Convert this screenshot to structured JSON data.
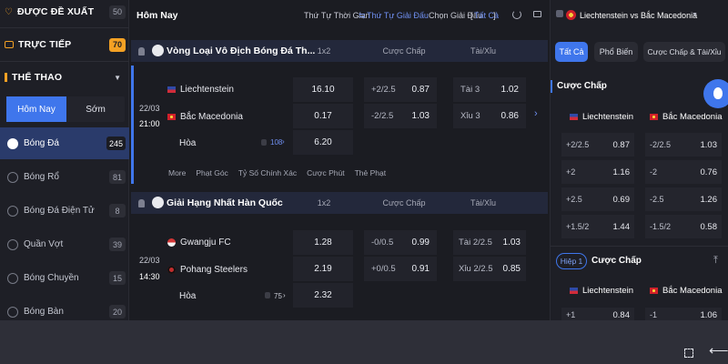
{
  "sidebar": {
    "recommended": {
      "label": "ĐƯỢC ĐỀ XUẤT",
      "count": "50"
    },
    "live": {
      "label": "TRỰC TIẾP",
      "count": "70"
    },
    "sports_header": {
      "label": "THỂ THAO"
    },
    "tabs": [
      {
        "label": "Hôm Nay"
      },
      {
        "label": "Sớm"
      }
    ],
    "sports": [
      {
        "label": "Bóng Đá",
        "count": "245"
      },
      {
        "label": "Bóng Rổ",
        "count": "81"
      },
      {
        "label": "Bóng Đá Điện Tử",
        "count": "8"
      },
      {
        "label": "Quần Vợt",
        "count": "39"
      },
      {
        "label": "Bóng Chuyền",
        "count": "15"
      },
      {
        "label": "Bóng Bàn",
        "count": "20"
      }
    ]
  },
  "main": {
    "title": "Hôm Nay",
    "sort_time": "Thứ Tự Thời Gian",
    "sort_league": "Thứ Tự Giải Đấu",
    "choose_league": "Chọn Giải Đấu",
    "all_link": "Tất Cả",
    "leagues": [
      {
        "name": "Vòng Loại Vô Địch Bóng Đá Th...",
        "col_1x2": "1x2",
        "col_handicap": "Cược Chấp",
        "col_ou": "Tài/Xỉu",
        "date": "22/03",
        "time": "21:00",
        "home": "Liechtenstein",
        "away": "Bắc Macedonia",
        "draw": "Hòa",
        "count": "108",
        "odds_1x2": [
          "16.10",
          "0.17",
          "6.20"
        ],
        "handicap": [
          {
            "line": "+2/2.5",
            "odds": "0.87"
          },
          {
            "line": "-2/2.5",
            "odds": "1.03"
          }
        ],
        "ou": [
          {
            "line": "Tài 3",
            "odds": "1.02"
          },
          {
            "line": "Xỉu 3",
            "odds": "0.86"
          }
        ],
        "more_links": [
          "More",
          "Phạt Góc",
          "Tỷ Số Chính Xác",
          "Cược Phút",
          "Thẻ Phạt"
        ]
      },
      {
        "name": "Giải Hạng Nhất Hàn Quốc",
        "col_1x2": "1x2",
        "col_handicap": "Cược Chấp",
        "col_ou": "Tài/Xỉu",
        "date": "22/03",
        "time": "14:30",
        "home": "Gwangju FC",
        "away": "Pohang Steelers",
        "draw": "Hòa",
        "count": "75",
        "odds_1x2": [
          "1.28",
          "2.19",
          "2.32"
        ],
        "handicap": [
          {
            "line": "-0/0.5",
            "odds": "0.99"
          },
          {
            "line": "+0/0.5",
            "odds": "0.91"
          }
        ],
        "ou": [
          {
            "line": "Tài 2/2.5",
            "odds": "1.03"
          },
          {
            "line": "Xỉu 2/2.5",
            "odds": "0.85"
          }
        ]
      }
    ]
  },
  "right": {
    "match_title": "Liechtenstein vs Bắc Macedonia",
    "tabs": [
      {
        "label": "Tất Cả"
      },
      {
        "label": "Phổ Biến"
      },
      {
        "label": "Cược Chấp & Tài/Xỉu"
      }
    ],
    "section1": {
      "title": "Cược Chấp",
      "home": "Liechtenstein",
      "away": "Bắc Macedonia",
      "rows": [
        {
          "hline": "+2/2.5",
          "hodds": "0.87",
          "aline": "-2/2.5",
          "aodds": "1.03"
        },
        {
          "hline": "+2",
          "hodds": "1.16",
          "aline": "-2",
          "aodds": "0.76"
        },
        {
          "hline": "+2.5",
          "hodds": "0.69",
          "aline": "-2.5",
          "aodds": "1.26"
        },
        {
          "hline": "+1.5/2",
          "hodds": "1.44",
          "aline": "-1.5/2",
          "aodds": "0.58"
        }
      ]
    },
    "section2": {
      "badge": "Hiệp 1",
      "title": "Cược Chấp",
      "home": "Liechtenstein",
      "away": "Bắc Macedonia",
      "rows": [
        {
          "hline": "+1",
          "hodds": "0.84",
          "aline": "-1",
          "aodds": "1.06"
        }
      ]
    }
  },
  "colors": {
    "accent": "#2f6df0",
    "orange": "#f4a124",
    "league_bar": "#23283b"
  }
}
